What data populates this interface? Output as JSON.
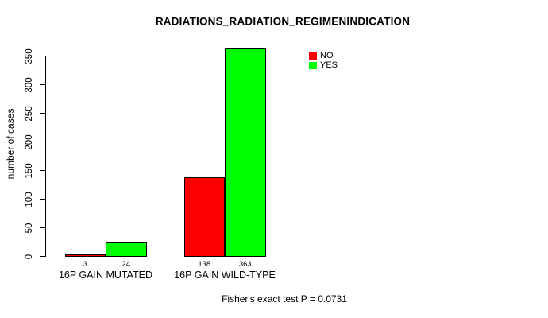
{
  "figure": {
    "title": "RADIATIONS_RADIATION_REGIMENINDICATION",
    "y_axis_label": "number of cases",
    "footer": "Fisher's exact test P = 0.0731"
  },
  "legend": {
    "items": [
      {
        "label": "NO",
        "color": "#ff0000"
      },
      {
        "label": "YES",
        "color": "#00ff00"
      }
    ]
  },
  "chart_data": {
    "type": "bar",
    "title": "RADIATIONS_RADIATION_REGIMENINDICATION",
    "categories": [
      "16P GAIN MUTATED",
      "16P GAIN WILD-TYPE"
    ],
    "series": [
      {
        "name": "NO",
        "color": "#ff0000",
        "values": [
          3,
          138
        ]
      },
      {
        "name": "YES",
        "color": "#00ff00",
        "values": [
          24,
          363
        ]
      }
    ],
    "value_labels": [
      [
        "3",
        "24"
      ],
      [
        "138",
        "363"
      ]
    ],
    "xlabel": "",
    "ylabel": "number of cases",
    "ylim": [
      0,
      350
    ],
    "yticks": [
      0,
      50,
      100,
      150,
      200,
      250,
      300,
      350
    ],
    "grid": false,
    "legend_position": "top-right",
    "bar_border_color": "#000000",
    "annotation": "Fisher's exact test P = 0.0731"
  }
}
